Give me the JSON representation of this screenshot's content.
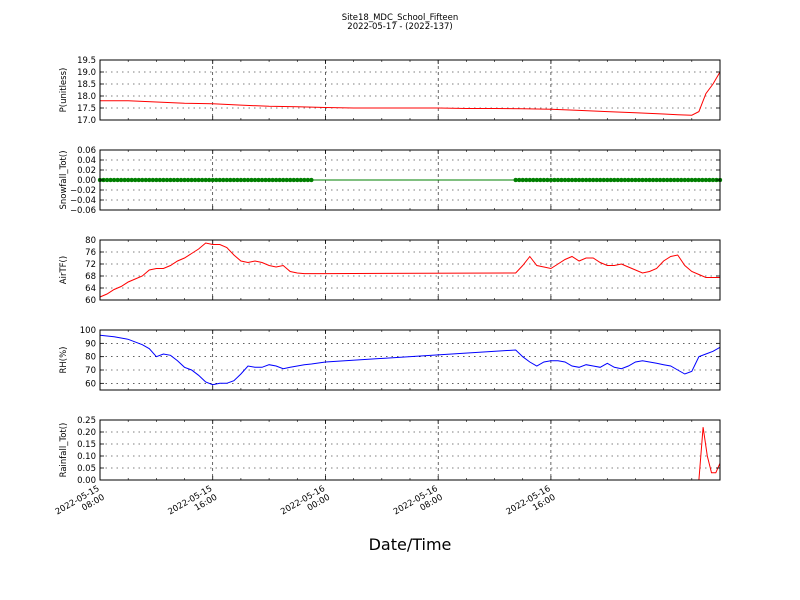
{
  "title": "Site18_MDC_School_Fifteen",
  "subtitle": "2022-05-17 - (2022-137)",
  "x_axis_label": "Date/Time",
  "x_tick_labels": [
    {
      "line1": "2022-05-15",
      "line2": "08:00"
    },
    {
      "line1": "2022-05-15",
      "line2": "16:00"
    },
    {
      "line1": "2022-05-16",
      "line2": "00:00"
    },
    {
      "line1": "2022-05-16",
      "line2": "08:00"
    },
    {
      "line1": "2022-05-16",
      "line2": "16:00"
    }
  ],
  "colors": {
    "red": "#ff0000",
    "green": "#007f00",
    "blue": "#0000ff"
  },
  "chart_data": [
    {
      "type": "line",
      "ylabel": "P(unitless)",
      "ylim": [
        17.0,
        19.5
      ],
      "yticks": [
        "17.0",
        "17.5",
        "18.0",
        "18.5",
        "19.0",
        "19.5"
      ],
      "ytick_values": [
        17.0,
        17.5,
        18.0,
        18.5,
        19.0,
        19.5
      ],
      "grid": true,
      "color": "red",
      "markers": false,
      "x_hours": [
        0,
        2,
        4,
        6,
        8,
        10,
        12,
        14,
        16,
        18,
        20,
        22,
        24,
        26,
        28,
        30,
        32,
        34,
        36,
        38,
        40,
        41,
        42,
        42.5,
        43,
        43.5,
        44
      ],
      "y": [
        17.8,
        17.8,
        17.75,
        17.7,
        17.68,
        17.62,
        17.57,
        17.55,
        17.52,
        17.5,
        17.5,
        17.5,
        17.5,
        17.48,
        17.48,
        17.47,
        17.45,
        17.4,
        17.35,
        17.3,
        17.25,
        17.22,
        17.2,
        17.35,
        18.1,
        18.5,
        19.0
      ]
    },
    {
      "type": "line",
      "ylabel": "Snowfall_Tot()",
      "ylim": [
        -0.06,
        0.06
      ],
      "yticks": [
        "−0.06",
        "−0.04",
        "−0.02",
        "0.00",
        "0.02",
        "0.04",
        "0.06"
      ],
      "ytick_values": [
        -0.06,
        -0.04,
        -0.02,
        0.0,
        0.02,
        0.04,
        0.06
      ],
      "grid": true,
      "color": "green",
      "markers": true,
      "marker_ranges_hours": [
        [
          0,
          15
        ],
        [
          29.5,
          44
        ]
      ],
      "x_hours": [
        0,
        44
      ],
      "y": [
        0,
        0
      ]
    },
    {
      "type": "line",
      "ylabel": "AirTF()",
      "ylim": [
        60,
        80
      ],
      "yticks": [
        "60",
        "64",
        "68",
        "72",
        "76",
        "80"
      ],
      "ytick_values": [
        60,
        64,
        68,
        72,
        76,
        80
      ],
      "grid": true,
      "color": "red",
      "markers": false,
      "x_hours": [
        0,
        0.5,
        1,
        1.5,
        2,
        2.5,
        3,
        3.5,
        4,
        4.5,
        5,
        5.5,
        6,
        6.5,
        7,
        7.5,
        8,
        8.5,
        9,
        9.5,
        10,
        10.5,
        11,
        11.5,
        12,
        12.5,
        13,
        13.5,
        14,
        14.5,
        15,
        15.5,
        16,
        29.5,
        30,
        30.5,
        31,
        31.5,
        32,
        32.5,
        33,
        33.5,
        34,
        34.5,
        35,
        35.5,
        36,
        36.5,
        37,
        37.5,
        38,
        38.5,
        39,
        39.5,
        40,
        40.5,
        41,
        41.5,
        42,
        42.5,
        43,
        43.5,
        44
      ],
      "y": [
        61,
        62,
        63.5,
        64.5,
        66,
        67,
        68,
        70,
        70.5,
        70.5,
        71.5,
        73,
        74,
        75.5,
        77,
        79,
        78.5,
        78.5,
        77.5,
        75,
        73,
        72.5,
        73,
        72.5,
        71.5,
        71,
        71.5,
        69.5,
        69,
        68.8,
        68.8,
        68.8,
        68.8,
        69,
        71.5,
        74.5,
        71.5,
        71,
        70.5,
        72,
        73.5,
        74.5,
        73,
        74,
        74,
        72.5,
        71.5,
        71.5,
        72,
        71,
        70,
        69,
        69.5,
        70.5,
        73,
        74.5,
        75,
        71.5,
        69.5,
        68.5,
        67.5,
        67.5,
        67.5
      ]
    },
    {
      "type": "line",
      "ylabel": "RH(%)",
      "ylim": [
        55,
        100
      ],
      "yticks": [
        "60",
        "70",
        "80",
        "90",
        "100"
      ],
      "ytick_values": [
        60,
        70,
        80,
        90,
        100
      ],
      "grid": true,
      "color": "blue",
      "markers": false,
      "x_hours": [
        0,
        1,
        2,
        3,
        3.5,
        4,
        4.5,
        5,
        5.5,
        6,
        6.5,
        7,
        7.5,
        8,
        8.5,
        9,
        9.5,
        10,
        10.5,
        11,
        11.5,
        12,
        12.5,
        13,
        13.5,
        14,
        14.5,
        15,
        16,
        29.5,
        30,
        30.5,
        31,
        31.5,
        32,
        32.5,
        33,
        33.5,
        34,
        34.5,
        35,
        35.5,
        36,
        36.5,
        37,
        37.5,
        38,
        38.5,
        39,
        39.5,
        40,
        40.5,
        41,
        41.5,
        42,
        42.5,
        43,
        43.5,
        44
      ],
      "y": [
        96,
        95,
        93,
        89,
        86,
        80,
        82,
        81,
        77,
        72,
        70,
        66,
        61,
        59,
        60,
        60,
        62,
        67,
        73,
        72,
        72,
        74,
        73,
        71,
        72,
        73,
        74,
        74.5,
        76,
        85,
        80,
        76,
        73,
        76,
        77,
        77,
        76,
        73,
        72,
        74,
        73,
        72,
        75,
        72,
        71,
        73,
        76,
        77,
        76,
        75,
        74,
        73,
        70,
        67,
        69,
        80,
        82,
        84,
        87
      ]
    },
    {
      "type": "line",
      "ylabel": "Rainfall_Tot()",
      "ylim": [
        0.0,
        0.25
      ],
      "yticks": [
        "0.00",
        "0.05",
        "0.10",
        "0.15",
        "0.20",
        "0.25"
      ],
      "ytick_values": [
        0.0,
        0.05,
        0.1,
        0.15,
        0.2,
        0.25
      ],
      "grid": true,
      "color": "red",
      "markers": false,
      "x_hours": [
        0,
        42.5,
        42.8,
        43.1,
        43.4,
        43.7,
        44
      ],
      "y": [
        0,
        0,
        0.22,
        0.1,
        0.03,
        0.03,
        0.07
      ]
    }
  ]
}
